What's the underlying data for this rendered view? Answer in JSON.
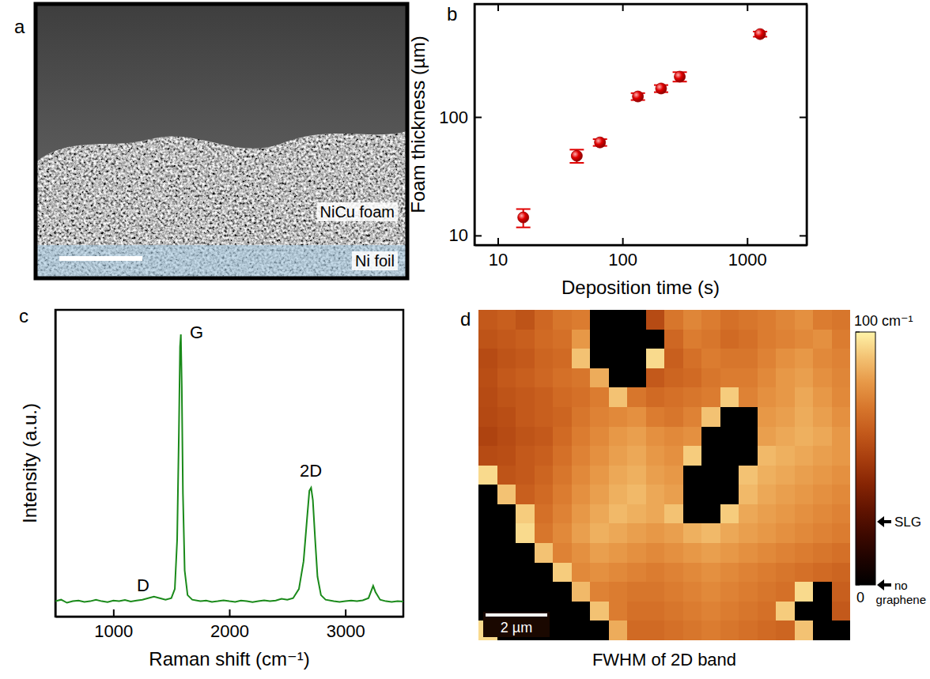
{
  "chart_data": [
    {
      "type": "image",
      "panel_label": "a",
      "annotations": [
        "NiCu foam",
        "Ni foil"
      ]
    },
    {
      "type": "scatter",
      "panel_label": "b",
      "xlabel": "Deposition time (s)",
      "ylabel": "Foam thickness (µm)",
      "log": true,
      "color": "#e00000",
      "marker": "circle",
      "x": [
        16,
        43,
        66,
        133,
        204,
        288,
        1270
      ],
      "values": [
        14.2,
        47,
        61,
        149,
        174,
        219,
        501
      ],
      "errors": [
        2.5,
        6,
        4,
        10,
        12,
        20,
        25
      ],
      "xlim": [
        6.5,
        3000
      ],
      "ylim": [
        8.3,
        900
      ],
      "xticks": [
        10,
        100,
        1000
      ],
      "yticks": [
        10,
        100
      ]
    },
    {
      "type": "line",
      "panel_label": "c",
      "xlabel": "Raman shift (cm⁻¹)",
      "ylabel": "Intensity (a.u.)",
      "color": "#1a8a1a",
      "tick_labels": "x",
      "annotations": [
        "G",
        "2D",
        "D"
      ],
      "x": [
        500,
        550,
        600,
        650,
        700,
        750,
        800,
        850,
        900,
        950,
        1000,
        1050,
        1100,
        1150,
        1200,
        1250,
        1300,
        1350,
        1400,
        1450,
        1500,
        1530,
        1550,
        1565,
        1575,
        1582,
        1590,
        1600,
        1615,
        1640,
        1680,
        1750,
        1800,
        1850,
        1900,
        1950,
        2000,
        2050,
        2100,
        2150,
        2200,
        2250,
        2300,
        2350,
        2400,
        2450,
        2500,
        2550,
        2600,
        2640,
        2670,
        2690,
        2705,
        2720,
        2740,
        2760,
        2790,
        2830,
        2900,
        2950,
        3000,
        3050,
        3100,
        3150,
        3200,
        3240,
        3260,
        3300,
        3350,
        3400,
        3450,
        3500
      ],
      "values": [
        0.05,
        0.055,
        0.045,
        0.05,
        0.052,
        0.048,
        0.05,
        0.055,
        0.05,
        0.047,
        0.052,
        0.05,
        0.054,
        0.049,
        0.052,
        0.055,
        0.06,
        0.065,
        0.06,
        0.055,
        0.06,
        0.09,
        0.25,
        0.6,
        0.88,
        0.92,
        0.75,
        0.4,
        0.15,
        0.07,
        0.055,
        0.05,
        0.052,
        0.048,
        0.05,
        0.053,
        0.05,
        0.048,
        0.052,
        0.05,
        0.047,
        0.05,
        0.053,
        0.05,
        0.052,
        0.058,
        0.055,
        0.06,
        0.09,
        0.18,
        0.32,
        0.41,
        0.42,
        0.38,
        0.25,
        0.13,
        0.07,
        0.055,
        0.05,
        0.048,
        0.05,
        0.052,
        0.05,
        0.053,
        0.06,
        0.1,
        0.08,
        0.055,
        0.05,
        0.048,
        0.05,
        0.049
      ],
      "xlim": [
        500,
        3500
      ],
      "ylim": [
        0,
        1
      ],
      "xticks": [
        1000,
        2000,
        3000
      ]
    },
    {
      "type": "heatmap",
      "panel_label": "d",
      "xlabel": "FWHM of 2D band",
      "scale_bar": "2 µm",
      "tick_labels": false,
      "cells": [
        [
          60,
          62,
          58,
          65,
          70,
          72,
          0,
          0,
          0,
          55,
          70,
          75,
          72,
          68,
          70,
          72,
          75,
          78,
          72,
          70
        ],
        [
          58,
          60,
          62,
          66,
          68,
          80,
          0,
          0,
          0,
          0,
          65,
          72,
          70,
          66,
          68,
          72,
          74,
          76,
          78,
          72
        ],
        [
          55,
          58,
          60,
          64,
          66,
          90,
          0,
          0,
          0,
          95,
          62,
          68,
          72,
          70,
          70,
          74,
          78,
          80,
          76,
          74
        ],
        [
          56,
          60,
          62,
          65,
          68,
          70,
          85,
          0,
          0,
          60,
          64,
          66,
          70,
          72,
          72,
          76,
          80,
          82,
          78,
          75
        ],
        [
          55,
          58,
          60,
          62,
          66,
          68,
          72,
          90,
          70,
          66,
          68,
          70,
          72,
          92,
          74,
          78,
          80,
          84,
          80,
          76
        ],
        [
          54,
          56,
          60,
          62,
          64,
          70,
          74,
          76,
          78,
          72,
          70,
          74,
          90,
          0,
          0,
          80,
          82,
          85,
          82,
          78
        ],
        [
          52,
          55,
          58,
          60,
          66,
          72,
          76,
          80,
          82,
          78,
          76,
          78,
          0,
          0,
          0,
          82,
          84,
          86,
          84,
          80
        ],
        [
          55,
          56,
          60,
          62,
          68,
          74,
          78,
          82,
          84,
          80,
          78,
          92,
          0,
          0,
          0,
          88,
          86,
          84,
          82,
          80
        ],
        [
          95,
          58,
          60,
          64,
          70,
          76,
          80,
          84,
          86,
          82,
          80,
          0,
          0,
          0,
          90,
          86,
          84,
          82,
          80,
          78
        ],
        [
          0,
          90,
          62,
          66,
          72,
          78,
          82,
          86,
          88,
          84,
          82,
          0,
          0,
          0,
          88,
          84,
          82,
          80,
          78,
          76
        ],
        [
          0,
          0,
          92,
          68,
          74,
          80,
          84,
          88,
          86,
          84,
          90,
          0,
          0,
          92,
          84,
          82,
          80,
          78,
          76,
          74
        ],
        [
          0,
          0,
          95,
          70,
          76,
          82,
          86,
          84,
          82,
          80,
          82,
          86,
          88,
          84,
          82,
          80,
          78,
          76,
          74,
          72
        ],
        [
          0,
          0,
          0,
          90,
          74,
          78,
          82,
          80,
          78,
          76,
          78,
          80,
          82,
          80,
          78,
          76,
          74,
          72,
          70,
          68
        ],
        [
          0,
          0,
          0,
          0,
          92,
          76,
          78,
          76,
          74,
          72,
          74,
          76,
          78,
          76,
          74,
          72,
          70,
          68,
          66,
          64
        ],
        [
          0,
          0,
          0,
          0,
          0,
          88,
          74,
          72,
          70,
          70,
          72,
          74,
          76,
          74,
          72,
          70,
          68,
          95,
          0,
          62
        ],
        [
          0,
          0,
          0,
          0,
          0,
          0,
          90,
          72,
          68,
          68,
          70,
          72,
          74,
          72,
          70,
          68,
          92,
          0,
          0,
          60
        ],
        [
          95,
          0,
          0,
          0,
          0,
          0,
          0,
          85,
          66,
          66,
          68,
          70,
          72,
          70,
          68,
          66,
          64,
          90,
          0,
          0
        ]
      ],
      "colorbar": {
        "range": [
          0,
          100
        ],
        "ticks": [
          {
            "value": 100,
            "label": "100 cm⁻¹"
          },
          0
        ],
        "markers": [
          {
            "value": 25,
            "label": "SLG"
          },
          {
            "value": 0,
            "label": "no graphene"
          }
        ]
      }
    }
  ]
}
